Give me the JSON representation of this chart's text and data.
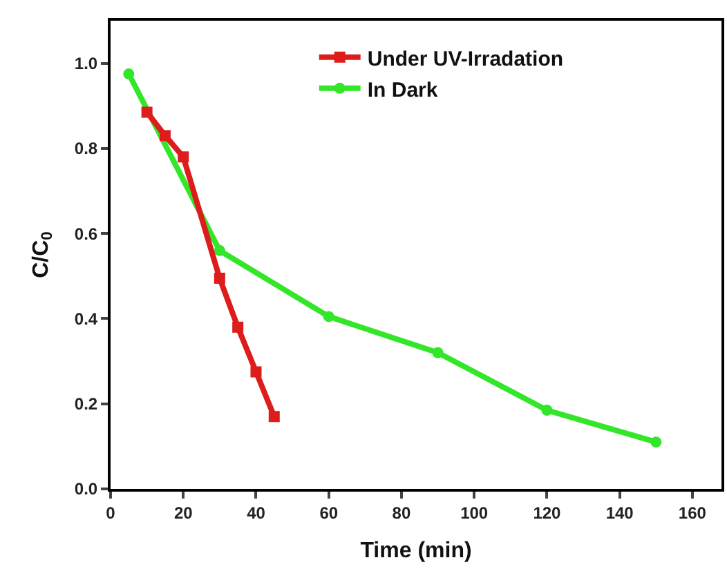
{
  "chart_data": {
    "type": "line",
    "xlabel": "Time (min)",
    "ylabel": "C/C$_{0}$",
    "series": [
      {
        "name": "Under UV-Irradation",
        "color": "#dd1c1c",
        "marker": "square",
        "x": [
          10,
          15,
          20,
          30,
          35,
          40,
          45
        ],
        "values": [
          0.885,
          0.83,
          0.78,
          0.495,
          0.38,
          0.275,
          0.17
        ]
      },
      {
        "name": "In Dark",
        "color": "#33e62a",
        "marker": "circle",
        "x": [
          5,
          30,
          60,
          90,
          120,
          150
        ],
        "values": [
          0.975,
          0.56,
          0.405,
          0.32,
          0.185,
          0.11
        ]
      }
    ],
    "xlim": [
      0,
      168
    ],
    "xticks": [
      0,
      20,
      40,
      60,
      80,
      100,
      120,
      140,
      160
    ],
    "ylim": [
      0,
      1.1
    ],
    "yticks": [
      {
        "value": 0,
        "label": "0.0"
      },
      0.2,
      0.4,
      0.6,
      0.8,
      {
        "value": 1,
        "label": "1.0"
      }
    ],
    "legend": "top",
    "line_style": "solid"
  }
}
